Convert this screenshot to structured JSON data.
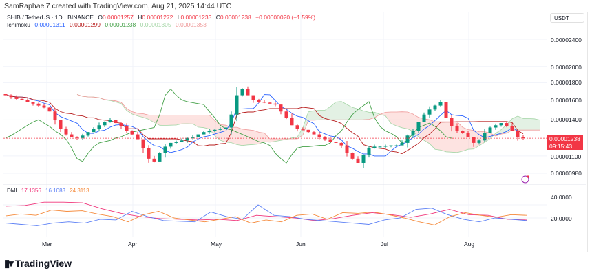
{
  "credit": "SamRaphael7 created with TradingView.com, Aug 21, 2025 14:44 UTC",
  "symbol": {
    "name": "SHIB / TetherUS · 1D · BINANCE",
    "o_label": "O",
    "o": "0.00001257",
    "h_label": "H",
    "h": "0.00001272",
    "l_label": "L",
    "l": "0.00001233",
    "c_label": "C",
    "c": "0.00001238",
    "change": "−0.00000020 (−1.59%)"
  },
  "ichimoku": {
    "label": "Ichimoku",
    "v1": "0.00001311",
    "v2": "0.00001299",
    "v3": "0.00001238",
    "v4": "0.00001305",
    "v5": "0.00001353"
  },
  "currency": "USDT",
  "price_tag": {
    "price": "0.00001238",
    "countdown": "09:15:43"
  },
  "dmi": {
    "label": "DMI",
    "v1": "17.1356",
    "v2": "16.1083",
    "v3": "24.3113",
    "ticks": [
      "40.0000",
      "20.0000"
    ]
  },
  "colors": {
    "up": "#089981",
    "down": "#f23645",
    "tenkan": "#2962ff",
    "kijun": "#b71c1c",
    "lagging": "#43a047",
    "dmi_pink": "#f0357a",
    "dmi_blue": "#5b7ff5",
    "dmi_orange": "#f5893a"
  },
  "logo": "TradingView",
  "chart_data": {
    "type": "candlestick",
    "title": "SHIB / TetherUS · 1D · BINANCE",
    "price_unit": "1e-8 USDT",
    "y_ticks": [
      "0.00002400",
      "0.00002000",
      "0.00001800",
      "0.00001600",
      "0.00001400",
      "0.00001100",
      "0.00000980"
    ],
    "x_ticks": [
      "Mar",
      "Apr",
      "May",
      "Jun",
      "Jul",
      "Aug"
    ],
    "closes": [
      1650,
      1630,
      1610,
      1600,
      1580,
      1560,
      1540,
      1520,
      1480,
      1400,
      1320,
      1270,
      1250,
      1240,
      1260,
      1290,
      1320,
      1350,
      1380,
      1400,
      1370,
      1340,
      1300,
      1270,
      1230,
      1160,
      1080,
      1060,
      1120,
      1170,
      1200,
      1210,
      1220,
      1240,
      1250,
      1270,
      1290,
      1300,
      1310,
      1320,
      1330,
      1450,
      1650,
      1720,
      1650,
      1600,
      1580,
      1570,
      1560,
      1550,
      1480,
      1420,
      1350,
      1320,
      1310,
      1290,
      1270,
      1250,
      1230,
      1210,
      1200,
      1180,
      1120,
      1080,
      1050,
      1110,
      1160,
      1170,
      1170,
      1175,
      1180,
      1180,
      1200,
      1260,
      1300,
      1380,
      1450,
      1500,
      1540,
      1580,
      1420,
      1340,
      1300,
      1280,
      1250,
      1200,
      1220,
      1280,
      1330,
      1350,
      1370,
      1340,
      1300,
      1250,
      1238
    ],
    "dmi_series": [
      {
        "name": "ADX",
        "values": [
          38,
          39,
          44,
          44,
          43,
          34,
          27,
          22,
          19,
          18,
          17,
          18,
          16,
          24,
          22,
          20,
          16,
          19,
          24,
          28,
          25,
          21,
          26,
          33,
          25,
          24,
          18,
          17
        ]
      },
      {
        "name": "+DI",
        "values": [
          12,
          10,
          8,
          12,
          14,
          12,
          18,
          17,
          30,
          22,
          16,
          15,
          14,
          29,
          22,
          18,
          40,
          24,
          22,
          18,
          16,
          14,
          12,
          10,
          17,
          20,
          33,
          35,
          25,
          18,
          14,
          20,
          18,
          16
        ]
      },
      {
        "name": "-DI",
        "values": [
          23,
          26,
          24,
          32,
          30,
          31,
          26,
          22,
          14,
          25,
          30,
          20,
          17,
          14,
          18,
          22,
          12,
          17,
          14,
          24,
          26,
          18,
          28,
          27,
          29,
          25,
          20,
          14,
          9,
          22,
          28,
          24,
          21,
          25,
          24
        ]
      }
    ]
  }
}
